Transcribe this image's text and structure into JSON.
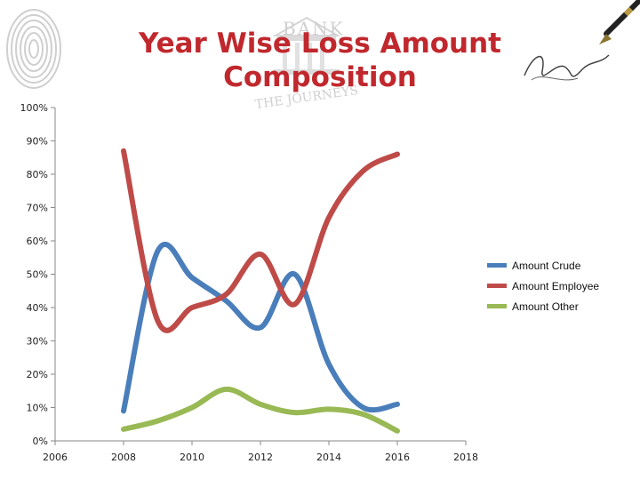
{
  "chart_data": {
    "type": "line",
    "title": "Year Wise Loss Amount Composition",
    "xlabel": "",
    "ylabel": "",
    "x_ticks": [
      "2006",
      "2008",
      "2010",
      "2012",
      "2014",
      "2016",
      "2018"
    ],
    "y_ticks": [
      "0%",
      "10%",
      "20%",
      "30%",
      "40%",
      "50%",
      "60%",
      "70%",
      "80%",
      "90%",
      "100%"
    ],
    "xlim": [
      2006,
      2018
    ],
    "ylim": [
      0,
      100
    ],
    "grid": false,
    "legend_position": "right",
    "series": [
      {
        "name": "Amount Crude",
        "color": "#4a7ebb",
        "x": [
          2008,
          2009,
          2010,
          2011,
          2012,
          2013,
          2014,
          2015,
          2016
        ],
        "values": [
          9,
          57,
          49,
          42,
          34,
          50,
          23,
          10,
          11
        ]
      },
      {
        "name": "Amount Employee",
        "color": "#be4b48",
        "x": [
          2008,
          2009,
          2010,
          2011,
          2012,
          2013,
          2014,
          2015,
          2016
        ],
        "values": [
          87,
          36,
          40,
          44,
          56,
          41,
          67,
          81,
          86
        ]
      },
      {
        "name": "Amount Other",
        "color": "#98b954",
        "x": [
          2008,
          2009,
          2010,
          2011,
          2012,
          2013,
          2014,
          2015,
          2016
        ],
        "values": [
          3.5,
          6,
          10,
          15.5,
          11,
          8.5,
          9.5,
          8,
          3
        ]
      }
    ]
  },
  "decor": {
    "fingerprint_icon": "fingerprint-icon",
    "bank_watermark_text": "BANK",
    "watermark_subtext": "THE JOURNEYS",
    "pen_icon": "fountain-pen-icon",
    "signature_icon": "signature-icon"
  }
}
